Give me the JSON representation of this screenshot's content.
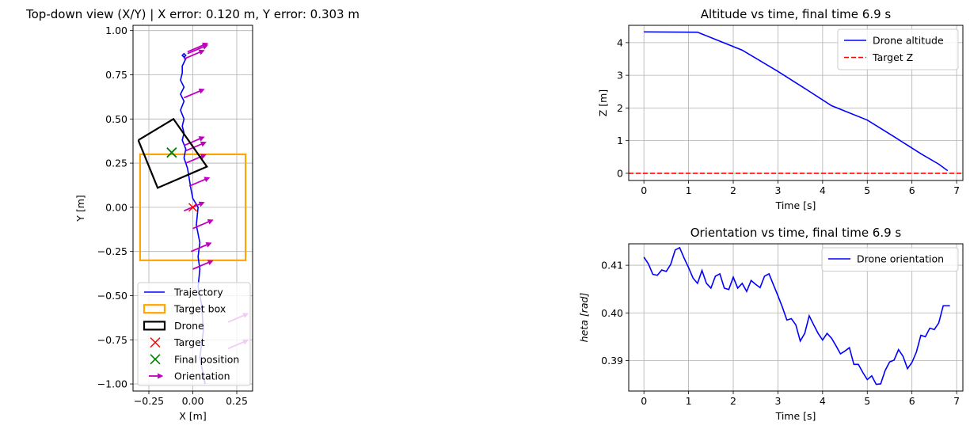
{
  "chart_data": [
    {
      "type": "scatter",
      "title": "Top-down view (X/Y) | X error: 0.120 m, Y error: 0.303 m",
      "xlabel": "X [m]",
      "ylabel": "Y [m]",
      "xlim": [
        -0.34,
        0.34
      ],
      "ylim": [
        -1.04,
        1.03
      ],
      "xticks": [
        -0.25,
        0.0,
        0.25
      ],
      "xtick_labels": [
        "−0.25",
        "0.00",
        "0.25"
      ],
      "yticks": [
        -1.0,
        -0.75,
        -0.5,
        -0.25,
        0.0,
        0.25,
        0.5,
        0.75,
        1.0
      ],
      "ytick_labels": [
        "−1.00",
        "−0.75",
        "−0.50",
        "−0.25",
        "0.00",
        "0.25",
        "0.50",
        "0.75",
        "1.00"
      ],
      "grid": true,
      "legend_position": "lower-left",
      "legend": [
        "Trajectory",
        "Target box",
        "Drone",
        "Target",
        "Final position",
        "Orientation"
      ],
      "trajectory": {
        "x": [
          0.07,
          0.04,
          0.06,
          0.05,
          0.03,
          0.04,
          0.03,
          0.04,
          0.02,
          0.03,
          0.0,
          -0.01,
          -0.02,
          -0.03,
          -0.05,
          -0.04,
          -0.06,
          -0.05,
          -0.06,
          -0.05,
          -0.07,
          -0.05,
          -0.07,
          -0.05,
          -0.07,
          -0.06,
          -0.06,
          -0.04,
          -0.06,
          -0.05,
          -0.04,
          -0.05
        ],
        "y": [
          -1.0,
          -0.85,
          -0.7,
          -0.55,
          -0.45,
          -0.35,
          -0.28,
          -0.2,
          -0.1,
          0.0,
          0.05,
          0.1,
          0.16,
          0.22,
          0.28,
          0.33,
          0.38,
          0.42,
          0.46,
          0.5,
          0.55,
          0.6,
          0.64,
          0.68,
          0.72,
          0.76,
          0.8,
          0.84,
          0.86,
          0.87,
          0.86,
          0.85
        ]
      },
      "target_box": {
        "x_range": [
          -0.3,
          0.3
        ],
        "y_range": [
          -0.3,
          0.3
        ]
      },
      "drone_box": {
        "x": [
          -0.31,
          -0.11,
          0.08,
          -0.2,
          -0.31
        ],
        "y": [
          0.38,
          0.5,
          0.23,
          0.11,
          0.38
        ]
      },
      "target": {
        "x": 0.0,
        "y": 0.0
      },
      "final_position": {
        "x": -0.12,
        "y": 0.31
      },
      "orientation_arrows": {
        "x": [
          0.2,
          0.2,
          0.0,
          -0.01,
          0.0,
          -0.05,
          -0.02,
          -0.04,
          -0.04,
          -0.05,
          -0.05,
          -0.05,
          -0.03,
          -0.03
        ],
        "y": [
          -0.8,
          -0.65,
          -0.35,
          -0.25,
          -0.12,
          -0.02,
          0.12,
          0.25,
          0.32,
          0.35,
          0.62,
          0.84,
          0.87,
          0.88
        ],
        "theta": 0.4,
        "length": 0.1
      }
    },
    {
      "type": "line",
      "title": "Altitude vs time, final time 6.9 s",
      "xlabel": "Time [s]",
      "ylabel": "Z [m]",
      "xlim": [
        -0.34,
        7.14
      ],
      "ylim": [
        -0.22,
        4.53
      ],
      "xticks": [
        0,
        1,
        2,
        3,
        4,
        5,
        6,
        7
      ],
      "yticks": [
        0,
        1,
        2,
        3,
        4
      ],
      "grid": true,
      "legend_position": "top-right",
      "series": [
        {
          "name": "Drone altitude",
          "color": "#0000ff",
          "style": "solid",
          "x": [
            0,
            1.2,
            1.6,
            2.2,
            3.0,
            3.6,
            4.2,
            5.0,
            5.6,
            6.2,
            6.6,
            6.8
          ],
          "y": [
            4.33,
            4.32,
            4.1,
            3.77,
            3.12,
            2.6,
            2.07,
            1.63,
            1.12,
            0.6,
            0.28,
            0.08
          ]
        },
        {
          "name": "Target Z",
          "color": "#ff0000",
          "style": "dashed",
          "x": [
            -0.34,
            7.14
          ],
          "y": [
            0.0,
            0.0
          ]
        }
      ]
    },
    {
      "type": "line",
      "title": "Orientation vs time, final time 6.9 s",
      "xlabel": "Time [s]",
      "ylabel": "$\\theta$ [rad]",
      "ylabel_display": "heta [rad]",
      "xlim": [
        -0.34,
        7.14
      ],
      "ylim": [
        0.3836,
        0.4145
      ],
      "xticks": [
        0,
        1,
        2,
        3,
        4,
        5,
        6,
        7
      ],
      "yticks": [
        0.39,
        0.4,
        0.41
      ],
      "ytick_labels": [
        "0.39",
        "0.40",
        "0.41"
      ],
      "grid": true,
      "legend_position": "top-right",
      "series": [
        {
          "name": "Drone orientation",
          "color": "#0000ff",
          "style": "solid",
          "x": [
            0.0,
            0.1,
            0.2,
            0.3,
            0.4,
            0.5,
            0.6,
            0.7,
            0.8,
            0.9,
            1.0,
            1.1,
            1.2,
            1.3,
            1.4,
            1.5,
            1.6,
            1.7,
            1.8,
            1.9,
            2.0,
            2.1,
            2.2,
            2.3,
            2.4,
            2.5,
            2.6,
            2.7,
            2.8,
            2.9,
            3.0,
            3.1,
            3.2,
            3.3,
            3.4,
            3.5,
            3.6,
            3.7,
            3.8,
            3.9,
            4.0,
            4.1,
            4.2,
            4.3,
            4.4,
            4.5,
            4.6,
            4.7,
            4.8,
            4.9,
            5.0,
            5.1,
            5.2,
            5.3,
            5.4,
            5.5,
            5.6,
            5.7,
            5.8,
            5.9,
            6.0,
            6.1,
            6.2,
            6.3,
            6.4,
            6.5,
            6.6,
            6.7,
            6.8,
            6.85
          ],
          "y": [
            0.4117,
            0.4103,
            0.4081,
            0.4079,
            0.409,
            0.4087,
            0.4102,
            0.4132,
            0.4137,
            0.4115,
            0.4095,
            0.4073,
            0.4062,
            0.4089,
            0.4062,
            0.4052,
            0.4077,
            0.4082,
            0.4052,
            0.4049,
            0.4075,
            0.4052,
            0.4062,
            0.4045,
            0.4068,
            0.406,
            0.4053,
            0.4077,
            0.4082,
            0.4059,
            0.4036,
            0.4012,
            0.3985,
            0.3988,
            0.3975,
            0.3941,
            0.3957,
            0.3994,
            0.3975,
            0.3957,
            0.3943,
            0.3957,
            0.3947,
            0.3931,
            0.3914,
            0.392,
            0.3927,
            0.3892,
            0.3892,
            0.3875,
            0.386,
            0.3868,
            0.385,
            0.3851,
            0.3879,
            0.3897,
            0.3901,
            0.3923,
            0.3909,
            0.3883,
            0.3896,
            0.3918,
            0.3953,
            0.395,
            0.3968,
            0.3965,
            0.3979,
            0.4015,
            0.4015,
            0.4015
          ]
        }
      ]
    }
  ]
}
